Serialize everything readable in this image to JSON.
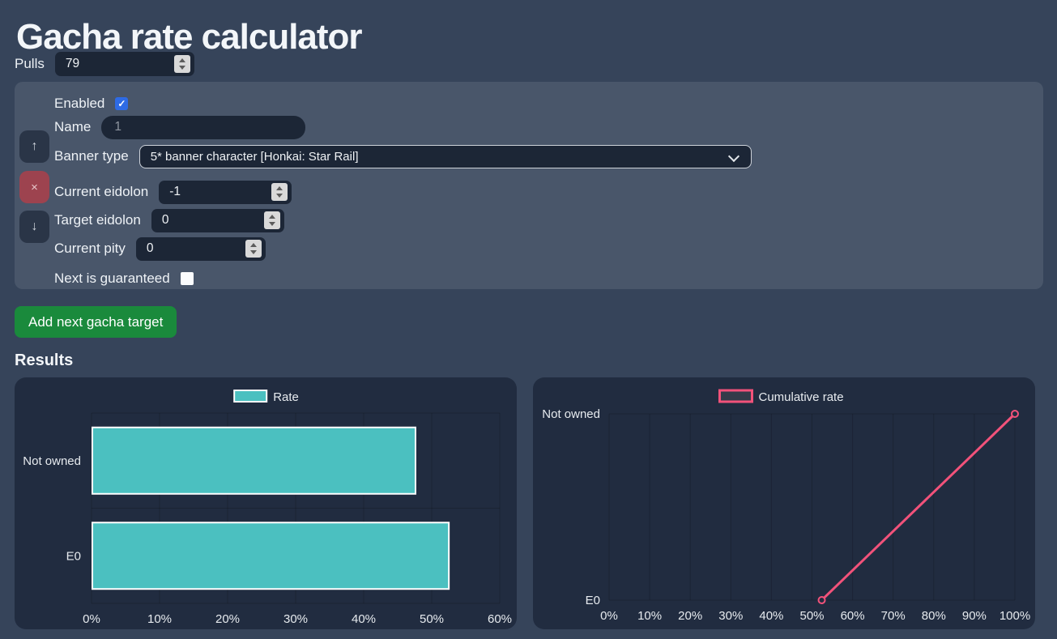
{
  "page": {
    "title": "Gacha rate calculator"
  },
  "pulls": {
    "label": "Pulls",
    "value": "79"
  },
  "target_form": {
    "enabled": {
      "label": "Enabled",
      "checked": true
    },
    "name": {
      "label": "Name",
      "value": "",
      "placeholder": "1"
    },
    "banner_type": {
      "label": "Banner type",
      "selected": "5* banner character [Honkai: Star Rail]"
    },
    "current_eidolon": {
      "label": "Current eidolon",
      "value": "-1"
    },
    "target_eidolon": {
      "label": "Target eidolon",
      "value": "0"
    },
    "current_pity": {
      "label": "Current pity",
      "value": "0"
    },
    "next_guaranteed": {
      "label": "Next is guaranteed",
      "checked": false
    }
  },
  "icons": {
    "move_up": "↑",
    "remove": "×",
    "move_down": "↓",
    "checkbox_check": "✓"
  },
  "add_target_button": {
    "label": "Add next gacha target"
  },
  "results": {
    "heading": "Results"
  },
  "colors": {
    "page_background": "#36445a",
    "form_panel": "#49566a",
    "chart_card": "#212c40",
    "input_background": "#1c2636",
    "add_button_green": "#1a8a3c",
    "remove_button_red": "#9d434f",
    "checkbox_blue": "#2e6be5",
    "bar_teal": "#4bc0c0",
    "line_pink": "#f2527a",
    "axis_text": "#e7ebef",
    "grid_line": "rgba(0,0,0,0.18)"
  },
  "chart_data": [
    {
      "type": "bar",
      "orientation": "horizontal",
      "title": "",
      "categories": [
        "Not owned",
        "E0"
      ],
      "series": [
        {
          "name": "Rate",
          "color": "#4bc0c0",
          "border_color": "#ffffff",
          "values": [
            47.5,
            52.4
          ]
        }
      ],
      "x_ticks": [
        "0%",
        "10%",
        "20%",
        "30%",
        "40%",
        "50%",
        "60%"
      ],
      "xlim": [
        0,
        60
      ],
      "grid": true,
      "legend_position": "top"
    },
    {
      "type": "line",
      "title": "",
      "categories": [
        "Not owned",
        "E0"
      ],
      "series": [
        {
          "name": "Cumulative rate",
          "color": "#f2527a",
          "values": [
            100,
            52.4
          ]
        }
      ],
      "x_ticks": [
        "0%",
        "10%",
        "20%",
        "30%",
        "40%",
        "50%",
        "60%",
        "70%",
        "80%",
        "90%",
        "100%"
      ],
      "xlim": [
        0,
        100
      ],
      "grid": true,
      "legend_position": "top",
      "marker": "open-circle"
    }
  ]
}
